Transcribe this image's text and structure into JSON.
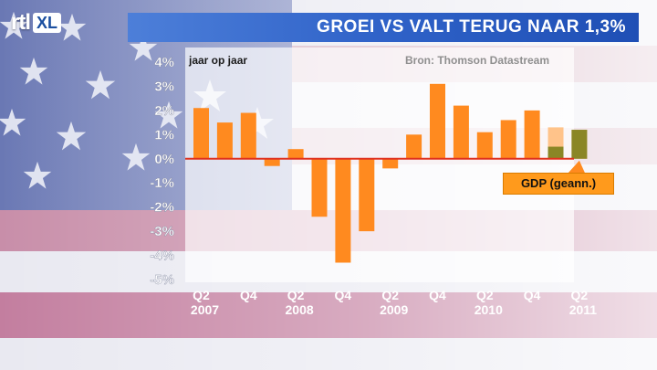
{
  "header": {
    "logo_text": "rtl",
    "logo_badge": "XL",
    "title": "GROEI VS VALT TERUG NAAR 1,3%"
  },
  "colors": {
    "bar_orange": "#ff8a1f",
    "bar_light": "#ffc38a",
    "bar_olive": "#8a8626",
    "zero_line": "#e0321f",
    "title_blue": "#2f62c8"
  },
  "chart_data": {
    "type": "bar",
    "unit_label": "jaar op jaar",
    "source": "Bron: Thomson Datastream",
    "y_ticks": [
      "4%",
      "3%",
      "2%",
      "1%",
      "0%",
      "-1%",
      "-2%",
      "-3%",
      "-4%",
      "-5%"
    ],
    "ylim": [
      -5,
      4
    ],
    "x_tick_labels": [
      {
        "top": "Q2",
        "bottom": "2007",
        "index": 0
      },
      {
        "top": "Q4",
        "bottom": "",
        "index": 2
      },
      {
        "top": "Q2",
        "bottom": "2008",
        "index": 4
      },
      {
        "top": "Q4",
        "bottom": "",
        "index": 6
      },
      {
        "top": "Q2",
        "bottom": "2009",
        "index": 8
      },
      {
        "top": "Q4",
        "bottom": "",
        "index": 10
      },
      {
        "top": "Q2",
        "bottom": "2010",
        "index": 12
      },
      {
        "top": "Q4",
        "bottom": "",
        "index": 14
      },
      {
        "top": "Q2",
        "bottom": "2011",
        "index": 16
      }
    ],
    "values": [
      2.1,
      1.5,
      1.9,
      -0.3,
      0.4,
      -2.4,
      -4.3,
      -3.0,
      -0.4,
      1.0,
      3.1,
      2.2,
      1.1,
      1.6,
      2.0,
      1.3,
      1.2
    ],
    "special_bars": [
      {
        "index": 15,
        "total": 1.3,
        "highlight": 0.5
      },
      {
        "index": 16,
        "total": 1.2,
        "highlight": 1.2
      }
    ],
    "annotation": "GDP (geann.)"
  }
}
